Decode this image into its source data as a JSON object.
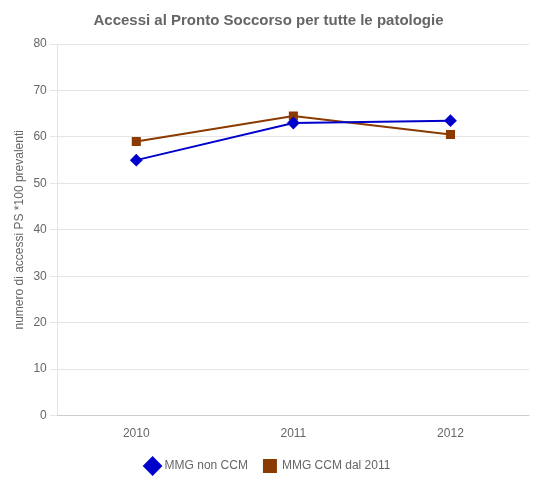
{
  "chart_data": {
    "type": "line",
    "title": "Accessi al Pronto Soccorso per tutte le patologie",
    "x": [
      2010,
      2011,
      2012
    ],
    "series": [
      {
        "name": "MMG non CCM",
        "color": "#0000CC",
        "marker": "diamond",
        "values": [
          55,
          63,
          63.5
        ]
      },
      {
        "name": "MMG CCM dal 2011",
        "color": "#8B3A00",
        "marker": "square",
        "values": [
          59,
          64.5,
          60.5
        ]
      }
    ],
    "ylabel": "numero di accessi PS *100 prevalenti",
    "xlim": [
      2009.5,
      2012.5
    ],
    "xticks": [
      2010,
      2011,
      2012
    ],
    "ylim": [
      0,
      80
    ],
    "yticks": [
      0,
      10,
      20,
      30,
      40,
      50,
      60,
      70,
      80
    ],
    "grid": "y",
    "legend": "bottom"
  }
}
